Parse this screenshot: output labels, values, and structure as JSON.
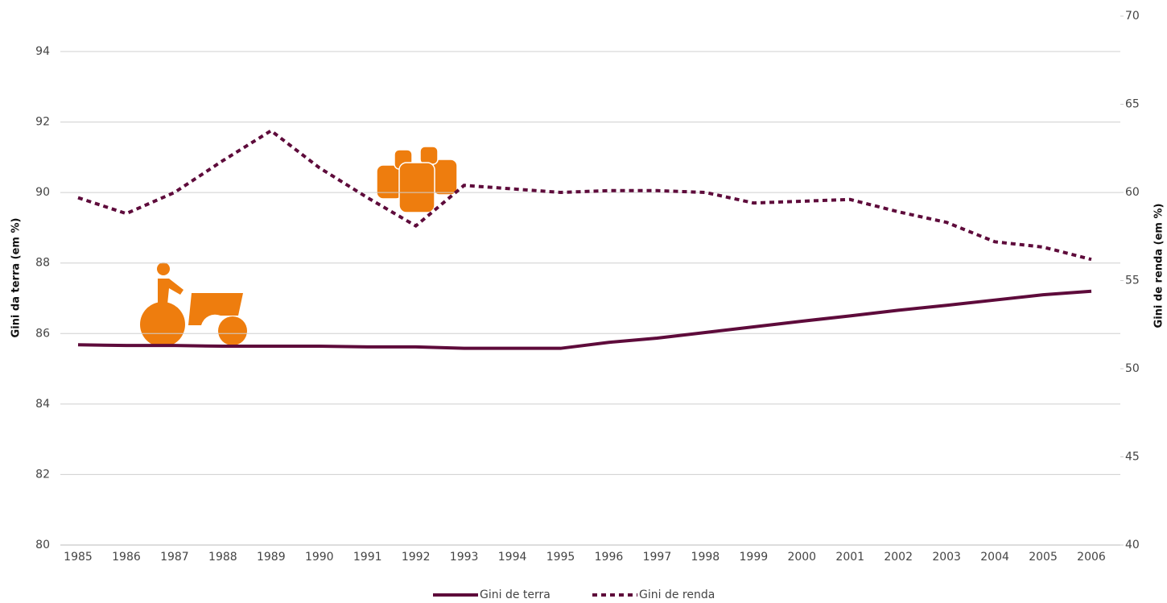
{
  "chart_data": {
    "type": "line",
    "categories": [
      "1985",
      "1986",
      "1987",
      "1988",
      "1989",
      "1990",
      "1991",
      "1992",
      "1993",
      "1994",
      "1995",
      "1996",
      "1997",
      "1998",
      "1999",
      "2000",
      "2001",
      "2002",
      "2003",
      "2004",
      "2005",
      "2006"
    ],
    "ylabel": "Gini da terra (em %)",
    "y2label": "Gini de renda (em %)",
    "ylim": [
      80,
      94
    ],
    "yticks": [
      80,
      82,
      84,
      86,
      88,
      90,
      92,
      94
    ],
    "y2lim": [
      40,
      70
    ],
    "y2ticks": [
      40,
      45,
      50,
      55,
      60,
      65,
      70
    ],
    "grid": true,
    "legend": "bottom",
    "series": [
      {
        "name": "Gini de terra",
        "color": "#5e0b3b",
        "style": "solid",
        "axis": "y",
        "values": [
          85.68,
          85.66,
          85.66,
          85.64,
          85.64,
          85.64,
          85.62,
          85.62,
          85.58,
          85.58,
          85.58,
          85.75,
          85.87,
          86.03,
          86.19,
          86.35,
          86.5,
          86.66,
          86.8,
          86.95,
          87.1,
          87.2
        ]
      },
      {
        "name": "Gini de renda",
        "color": "#5e0b3b",
        "style": "dotted",
        "axis": "y2",
        "values": [
          59.7,
          58.8,
          60.0,
          61.8,
          63.5,
          61.4,
          59.7,
          58.1,
          60.4,
          60.2,
          60.0,
          60.1,
          60.1,
          60.0,
          59.4,
          59.5,
          59.6,
          58.9,
          58.3,
          57.2,
          56.9,
          56.2
        ]
      }
    ]
  }
}
